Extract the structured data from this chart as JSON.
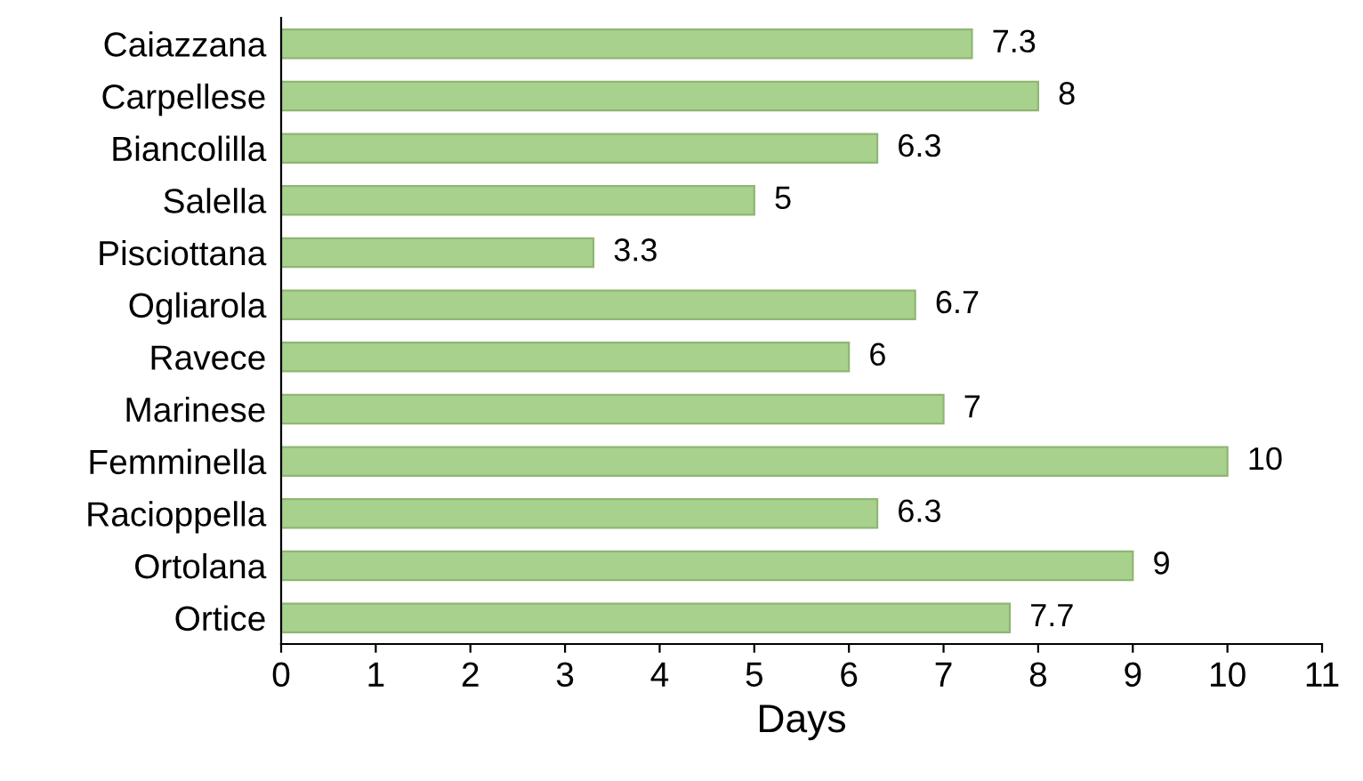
{
  "chart_data": {
    "type": "bar",
    "orientation": "horizontal",
    "xlabel": "Days",
    "categories": [
      "Caiazzana",
      "Carpellese",
      "Biancolilla",
      "Salella",
      "Pisciottana",
      "Ogliarola",
      "Ravece",
      "Marinese",
      "Femminella",
      "Racioppella",
      "Ortolana",
      "Ortice"
    ],
    "values": [
      7.3,
      8,
      6.3,
      5,
      3.3,
      6.7,
      6,
      7,
      10,
      6.3,
      9,
      7.7
    ],
    "color": "#a9d18e",
    "xlim": [
      0,
      11
    ],
    "xticks": [
      0,
      1,
      2,
      3,
      4,
      5,
      6,
      7,
      8,
      9,
      10,
      11
    ],
    "grid": false,
    "data_labels": true
  }
}
